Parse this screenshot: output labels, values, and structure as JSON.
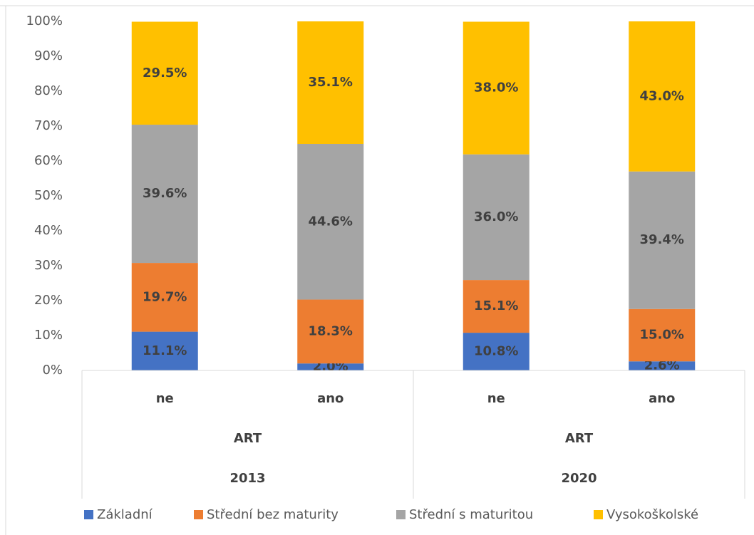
{
  "chart_data": {
    "type": "stacked_bar",
    "categories": [
      "ne",
      "ano",
      "ne",
      "ano"
    ],
    "category_groups": [
      {
        "name": "ART",
        "year": "2013"
      },
      {
        "name": "ART",
        "year": "2020"
      }
    ],
    "series": [
      {
        "name": "Základní",
        "color": "#4472c4",
        "values": [
          11.1,
          2.0,
          10.8,
          2.6
        ],
        "value_labels": [
          "11.1%",
          "2.0%",
          "10.8%",
          "2.6%"
        ]
      },
      {
        "name": "Střední bez maturity",
        "color": "#ed7d31",
        "values": [
          19.7,
          18.3,
          15.1,
          15.0
        ],
        "value_labels": [
          "19.7%",
          "18.3%",
          "15.1%",
          "15.0%"
        ]
      },
      {
        "name": "Střední s maturitou",
        "color": "#a5a5a5",
        "values": [
          39.6,
          44.6,
          36.0,
          39.4
        ],
        "value_labels": [
          "39.6%",
          "44.6%",
          "36.0%",
          "39.4%"
        ]
      },
      {
        "name": "Vysokoškolské",
        "color": "#ffc000",
        "values": [
          29.5,
          35.1,
          38.0,
          43.0
        ],
        "value_labels": [
          "29.5%",
          "35.1%",
          "38.0%",
          "43.0%"
        ]
      }
    ],
    "ylim": [
      0,
      100
    ],
    "yticks": [
      {
        "value": 0,
        "label": "0%"
      },
      {
        "value": 10,
        "label": "10%"
      },
      {
        "value": 20,
        "label": "20%"
      },
      {
        "value": 30,
        "label": "30%"
      },
      {
        "value": 40,
        "label": "40%"
      },
      {
        "value": 50,
        "label": "50%"
      },
      {
        "value": 60,
        "label": "60%"
      },
      {
        "value": 70,
        "label": "70%"
      },
      {
        "value": 80,
        "label": "80%"
      },
      {
        "value": 90,
        "label": "90%"
      },
      {
        "value": 100,
        "label": "100%"
      }
    ],
    "legend": "bottom"
  }
}
